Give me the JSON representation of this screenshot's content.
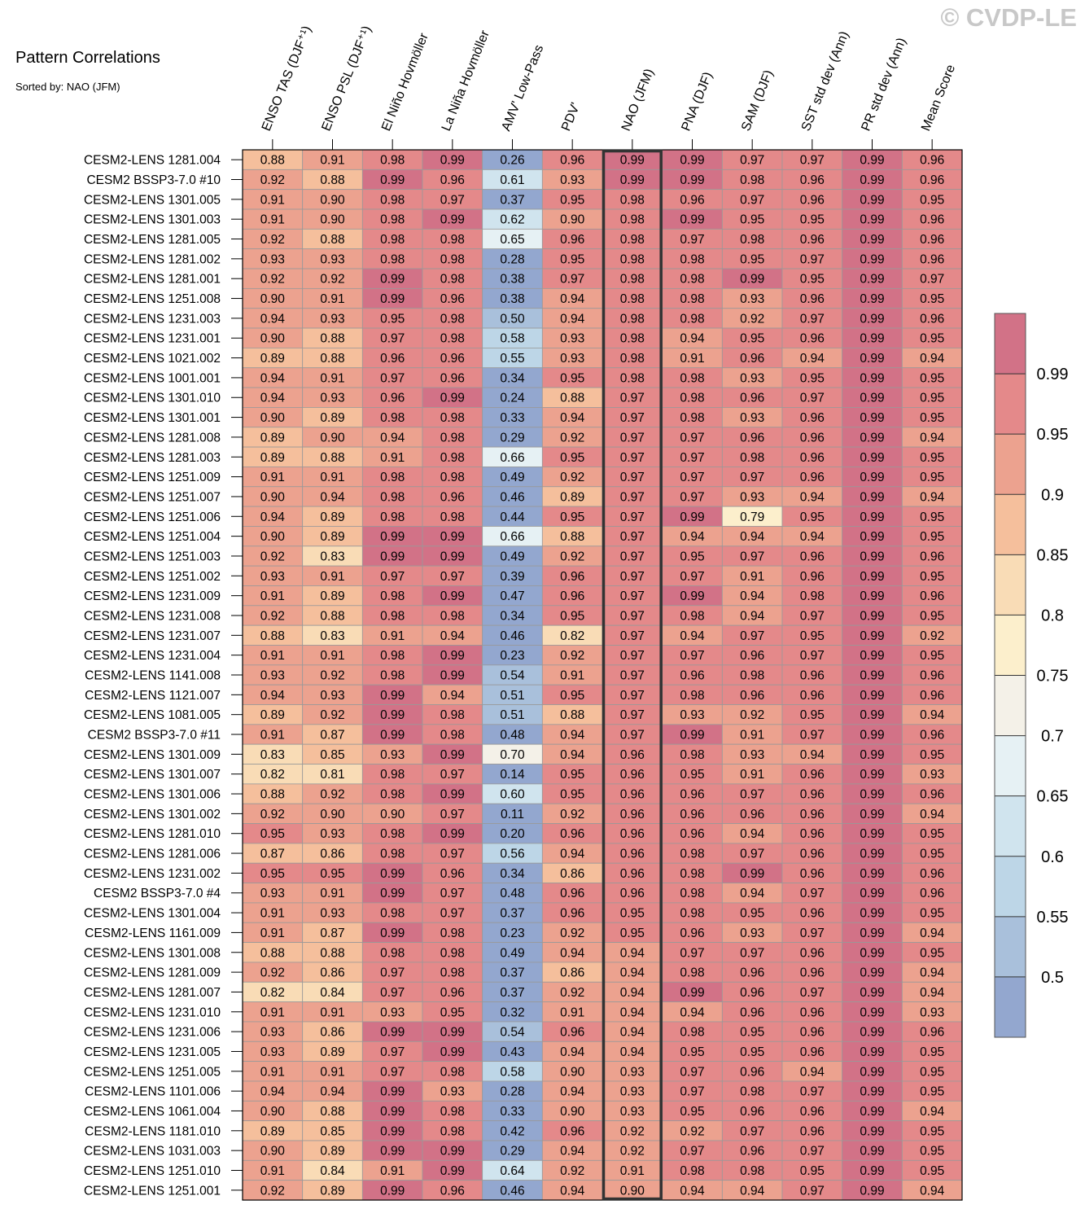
{
  "title": "Pattern Correlations",
  "subtitle": "Sorted by: NAO (JFM)",
  "watermark": "© CVDP-LE",
  "chart_data": {
    "type": "heatmap",
    "title": "Pattern Correlations",
    "subtitle": "Sorted by: NAO (JFM)",
    "highlighted_column": "NAO (JFM)",
    "columns": [
      "ENSO TAS (DJF⁺¹)",
      "ENSO PSL (DJF⁺¹)",
      "El Niño Hovmöller",
      "La Niña Hovmöller",
      "AMV' Low-Pass",
      "PDV'",
      "NAO (JFM)",
      "PNA (DJF)",
      "SAM (DJF)",
      "SST std dev (Ann)",
      "PR std dev (Ann)",
      "Mean Score"
    ],
    "rows": [
      {
        "name": "CESM2-LENS 1281.004",
        "values": [
          "0.88",
          "0.91",
          "0.98",
          "0.99",
          "0.26",
          "0.96",
          "0.99",
          "0.99",
          "0.97",
          "0.97",
          "0.99",
          "0.96"
        ]
      },
      {
        "name": "CESM2 BSSP3-7.0 #10",
        "values": [
          "0.92",
          "0.88",
          "0.99",
          "0.96",
          "0.61",
          "0.93",
          "0.99",
          "0.99",
          "0.98",
          "0.96",
          "0.99",
          "0.96"
        ]
      },
      {
        "name": "CESM2-LENS 1301.005",
        "values": [
          "0.91",
          "0.90",
          "0.98",
          "0.97",
          "0.37",
          "0.95",
          "0.98",
          "0.96",
          "0.97",
          "0.96",
          "0.99",
          "0.95"
        ]
      },
      {
        "name": "CESM2-LENS 1301.003",
        "values": [
          "0.91",
          "0.90",
          "0.98",
          "0.99",
          "0.62",
          "0.90",
          "0.98",
          "0.99",
          "0.95",
          "0.95",
          "0.99",
          "0.96"
        ]
      },
      {
        "name": "CESM2-LENS 1281.005",
        "values": [
          "0.92",
          "0.88",
          "0.98",
          "0.98",
          "0.65",
          "0.96",
          "0.98",
          "0.97",
          "0.98",
          "0.96",
          "0.99",
          "0.96"
        ]
      },
      {
        "name": "CESM2-LENS 1281.002",
        "values": [
          "0.93",
          "0.93",
          "0.98",
          "0.98",
          "0.28",
          "0.95",
          "0.98",
          "0.98",
          "0.95",
          "0.97",
          "0.99",
          "0.96"
        ]
      },
      {
        "name": "CESM2-LENS 1281.001",
        "values": [
          "0.92",
          "0.92",
          "0.99",
          "0.98",
          "0.38",
          "0.97",
          "0.98",
          "0.98",
          "0.99",
          "0.95",
          "0.99",
          "0.97"
        ]
      },
      {
        "name": "CESM2-LENS 1251.008",
        "values": [
          "0.90",
          "0.91",
          "0.99",
          "0.96",
          "0.38",
          "0.94",
          "0.98",
          "0.98",
          "0.93",
          "0.96",
          "0.99",
          "0.95"
        ]
      },
      {
        "name": "CESM2-LENS 1231.003",
        "values": [
          "0.94",
          "0.93",
          "0.95",
          "0.98",
          "0.50",
          "0.94",
          "0.98",
          "0.98",
          "0.92",
          "0.97",
          "0.99",
          "0.96"
        ]
      },
      {
        "name": "CESM2-LENS 1231.001",
        "values": [
          "0.90",
          "0.88",
          "0.97",
          "0.98",
          "0.58",
          "0.93",
          "0.98",
          "0.94",
          "0.95",
          "0.96",
          "0.99",
          "0.95"
        ]
      },
      {
        "name": "CESM2-LENS 1021.002",
        "values": [
          "0.89",
          "0.88",
          "0.96",
          "0.96",
          "0.55",
          "0.93",
          "0.98",
          "0.91",
          "0.96",
          "0.94",
          "0.99",
          "0.94"
        ]
      },
      {
        "name": "CESM2-LENS 1001.001",
        "values": [
          "0.94",
          "0.91",
          "0.97",
          "0.96",
          "0.34",
          "0.95",
          "0.98",
          "0.98",
          "0.93",
          "0.95",
          "0.99",
          "0.95"
        ]
      },
      {
        "name": "CESM2-LENS 1301.010",
        "values": [
          "0.94",
          "0.93",
          "0.96",
          "0.99",
          "0.24",
          "0.88",
          "0.97",
          "0.98",
          "0.96",
          "0.97",
          "0.99",
          "0.95"
        ]
      },
      {
        "name": "CESM2-LENS 1301.001",
        "values": [
          "0.90",
          "0.89",
          "0.98",
          "0.98",
          "0.33",
          "0.94",
          "0.97",
          "0.98",
          "0.93",
          "0.96",
          "0.99",
          "0.95"
        ]
      },
      {
        "name": "CESM2-LENS 1281.008",
        "values": [
          "0.89",
          "0.90",
          "0.94",
          "0.98",
          "0.29",
          "0.92",
          "0.97",
          "0.97",
          "0.96",
          "0.96",
          "0.99",
          "0.94"
        ]
      },
      {
        "name": "CESM2-LENS 1281.003",
        "values": [
          "0.89",
          "0.88",
          "0.91",
          "0.98",
          "0.66",
          "0.95",
          "0.97",
          "0.97",
          "0.98",
          "0.96",
          "0.99",
          "0.95"
        ]
      },
      {
        "name": "CESM2-LENS 1251.009",
        "values": [
          "0.91",
          "0.91",
          "0.98",
          "0.98",
          "0.49",
          "0.92",
          "0.97",
          "0.97",
          "0.97",
          "0.96",
          "0.99",
          "0.95"
        ]
      },
      {
        "name": "CESM2-LENS 1251.007",
        "values": [
          "0.90",
          "0.94",
          "0.98",
          "0.96",
          "0.46",
          "0.89",
          "0.97",
          "0.97",
          "0.93",
          "0.94",
          "0.99",
          "0.94"
        ]
      },
      {
        "name": "CESM2-LENS 1251.006",
        "values": [
          "0.94",
          "0.89",
          "0.98",
          "0.98",
          "0.44",
          "0.95",
          "0.97",
          "0.99",
          "0.79",
          "0.95",
          "0.99",
          "0.95"
        ]
      },
      {
        "name": "CESM2-LENS 1251.004",
        "values": [
          "0.90",
          "0.89",
          "0.99",
          "0.99",
          "0.66",
          "0.88",
          "0.97",
          "0.94",
          "0.94",
          "0.94",
          "0.99",
          "0.95"
        ]
      },
      {
        "name": "CESM2-LENS 1251.003",
        "values": [
          "0.92",
          "0.83",
          "0.99",
          "0.99",
          "0.49",
          "0.92",
          "0.97",
          "0.95",
          "0.97",
          "0.96",
          "0.99",
          "0.96"
        ]
      },
      {
        "name": "CESM2-LENS 1251.002",
        "values": [
          "0.93",
          "0.91",
          "0.97",
          "0.97",
          "0.39",
          "0.96",
          "0.97",
          "0.97",
          "0.91",
          "0.96",
          "0.99",
          "0.95"
        ]
      },
      {
        "name": "CESM2-LENS 1231.009",
        "values": [
          "0.91",
          "0.89",
          "0.98",
          "0.99",
          "0.47",
          "0.96",
          "0.97",
          "0.99",
          "0.94",
          "0.98",
          "0.99",
          "0.96"
        ]
      },
      {
        "name": "CESM2-LENS 1231.008",
        "values": [
          "0.92",
          "0.88",
          "0.98",
          "0.98",
          "0.34",
          "0.95",
          "0.97",
          "0.98",
          "0.94",
          "0.97",
          "0.99",
          "0.95"
        ]
      },
      {
        "name": "CESM2-LENS 1231.007",
        "values": [
          "0.88",
          "0.83",
          "0.91",
          "0.94",
          "0.46",
          "0.82",
          "0.97",
          "0.94",
          "0.97",
          "0.95",
          "0.99",
          "0.92"
        ]
      },
      {
        "name": "CESM2-LENS 1231.004",
        "values": [
          "0.91",
          "0.91",
          "0.98",
          "0.99",
          "0.23",
          "0.92",
          "0.97",
          "0.97",
          "0.96",
          "0.97",
          "0.99",
          "0.95"
        ]
      },
      {
        "name": "CESM2-LENS 1141.008",
        "values": [
          "0.93",
          "0.92",
          "0.98",
          "0.99",
          "0.54",
          "0.91",
          "0.97",
          "0.96",
          "0.98",
          "0.96",
          "0.99",
          "0.96"
        ]
      },
      {
        "name": "CESM2-LENS 1121.007",
        "values": [
          "0.94",
          "0.93",
          "0.99",
          "0.94",
          "0.51",
          "0.95",
          "0.97",
          "0.98",
          "0.96",
          "0.96",
          "0.99",
          "0.96"
        ]
      },
      {
        "name": "CESM2-LENS 1081.005",
        "values": [
          "0.89",
          "0.92",
          "0.99",
          "0.98",
          "0.51",
          "0.88",
          "0.97",
          "0.93",
          "0.92",
          "0.95",
          "0.99",
          "0.94"
        ]
      },
      {
        "name": "CESM2 BSSP3-7.0 #11",
        "values": [
          "0.91",
          "0.87",
          "0.99",
          "0.98",
          "0.48",
          "0.94",
          "0.97",
          "0.99",
          "0.91",
          "0.97",
          "0.99",
          "0.96"
        ]
      },
      {
        "name": "CESM2-LENS 1301.009",
        "values": [
          "0.83",
          "0.85",
          "0.93",
          "0.99",
          "0.70",
          "0.94",
          "0.96",
          "0.98",
          "0.93",
          "0.94",
          "0.99",
          "0.95"
        ]
      },
      {
        "name": "CESM2-LENS 1301.007",
        "values": [
          "0.82",
          "0.81",
          "0.98",
          "0.97",
          "0.14",
          "0.95",
          "0.96",
          "0.95",
          "0.91",
          "0.96",
          "0.99",
          "0.93"
        ]
      },
      {
        "name": "CESM2-LENS 1301.006",
        "values": [
          "0.88",
          "0.92",
          "0.98",
          "0.99",
          "0.60",
          "0.95",
          "0.96",
          "0.96",
          "0.97",
          "0.96",
          "0.99",
          "0.96"
        ]
      },
      {
        "name": "CESM2-LENS 1301.002",
        "values": [
          "0.92",
          "0.90",
          "0.90",
          "0.97",
          "0.11",
          "0.92",
          "0.96",
          "0.96",
          "0.96",
          "0.96",
          "0.99",
          "0.94"
        ]
      },
      {
        "name": "CESM2-LENS 1281.010",
        "values": [
          "0.95",
          "0.93",
          "0.98",
          "0.99",
          "0.20",
          "0.96",
          "0.96",
          "0.96",
          "0.94",
          "0.96",
          "0.99",
          "0.95"
        ]
      },
      {
        "name": "CESM2-LENS 1281.006",
        "values": [
          "0.87",
          "0.86",
          "0.98",
          "0.97",
          "0.56",
          "0.94",
          "0.96",
          "0.98",
          "0.97",
          "0.96",
          "0.99",
          "0.95"
        ]
      },
      {
        "name": "CESM2-LENS 1231.002",
        "values": [
          "0.95",
          "0.95",
          "0.99",
          "0.96",
          "0.34",
          "0.86",
          "0.96",
          "0.98",
          "0.99",
          "0.96",
          "0.99",
          "0.96"
        ]
      },
      {
        "name": "CESM2 BSSP3-7.0 #4",
        "values": [
          "0.93",
          "0.91",
          "0.99",
          "0.97",
          "0.48",
          "0.96",
          "0.96",
          "0.98",
          "0.94",
          "0.97",
          "0.99",
          "0.96"
        ]
      },
      {
        "name": "CESM2-LENS 1301.004",
        "values": [
          "0.91",
          "0.93",
          "0.98",
          "0.97",
          "0.37",
          "0.96",
          "0.95",
          "0.98",
          "0.95",
          "0.96",
          "0.99",
          "0.95"
        ]
      },
      {
        "name": "CESM2-LENS 1161.009",
        "values": [
          "0.91",
          "0.87",
          "0.99",
          "0.98",
          "0.23",
          "0.92",
          "0.95",
          "0.96",
          "0.93",
          "0.97",
          "0.99",
          "0.94"
        ]
      },
      {
        "name": "CESM2-LENS 1301.008",
        "values": [
          "0.88",
          "0.88",
          "0.98",
          "0.98",
          "0.49",
          "0.94",
          "0.94",
          "0.97",
          "0.97",
          "0.96",
          "0.99",
          "0.95"
        ]
      },
      {
        "name": "CESM2-LENS 1281.009",
        "values": [
          "0.92",
          "0.86",
          "0.97",
          "0.98",
          "0.37",
          "0.86",
          "0.94",
          "0.98",
          "0.96",
          "0.96",
          "0.99",
          "0.94"
        ]
      },
      {
        "name": "CESM2-LENS 1281.007",
        "values": [
          "0.82",
          "0.84",
          "0.97",
          "0.96",
          "0.37",
          "0.92",
          "0.94",
          "0.99",
          "0.96",
          "0.97",
          "0.99",
          "0.94"
        ]
      },
      {
        "name": "CESM2-LENS 1231.010",
        "values": [
          "0.91",
          "0.91",
          "0.93",
          "0.95",
          "0.32",
          "0.91",
          "0.94",
          "0.94",
          "0.96",
          "0.96",
          "0.99",
          "0.93"
        ]
      },
      {
        "name": "CESM2-LENS 1231.006",
        "values": [
          "0.93",
          "0.86",
          "0.99",
          "0.99",
          "0.54",
          "0.96",
          "0.94",
          "0.98",
          "0.95",
          "0.96",
          "0.99",
          "0.96"
        ]
      },
      {
        "name": "CESM2-LENS 1231.005",
        "values": [
          "0.93",
          "0.89",
          "0.97",
          "0.99",
          "0.43",
          "0.94",
          "0.94",
          "0.95",
          "0.95",
          "0.96",
          "0.99",
          "0.95"
        ]
      },
      {
        "name": "CESM2-LENS 1251.005",
        "values": [
          "0.91",
          "0.91",
          "0.97",
          "0.98",
          "0.58",
          "0.90",
          "0.93",
          "0.97",
          "0.96",
          "0.94",
          "0.99",
          "0.95"
        ]
      },
      {
        "name": "CESM2-LENS 1101.006",
        "values": [
          "0.94",
          "0.94",
          "0.99",
          "0.93",
          "0.28",
          "0.94",
          "0.93",
          "0.97",
          "0.98",
          "0.97",
          "0.99",
          "0.95"
        ]
      },
      {
        "name": "CESM2-LENS 1061.004",
        "values": [
          "0.90",
          "0.88",
          "0.99",
          "0.98",
          "0.33",
          "0.90",
          "0.93",
          "0.95",
          "0.96",
          "0.96",
          "0.99",
          "0.94"
        ]
      },
      {
        "name": "CESM2-LENS 1181.010",
        "values": [
          "0.89",
          "0.85",
          "0.99",
          "0.98",
          "0.42",
          "0.96",
          "0.92",
          "0.92",
          "0.97",
          "0.96",
          "0.99",
          "0.95"
        ]
      },
      {
        "name": "CESM2-LENS 1031.003",
        "values": [
          "0.90",
          "0.89",
          "0.99",
          "0.99",
          "0.29",
          "0.94",
          "0.92",
          "0.97",
          "0.96",
          "0.97",
          "0.99",
          "0.95"
        ]
      },
      {
        "name": "CESM2-LENS 1251.010",
        "values": [
          "0.91",
          "0.84",
          "0.91",
          "0.99",
          "0.64",
          "0.92",
          "0.91",
          "0.98",
          "0.98",
          "0.95",
          "0.99",
          "0.95"
        ]
      },
      {
        "name": "CESM2-LENS 1251.001",
        "values": [
          "0.92",
          "0.89",
          "0.99",
          "0.96",
          "0.46",
          "0.94",
          "0.90",
          "0.94",
          "0.94",
          "0.97",
          "0.99",
          "0.94"
        ]
      }
    ],
    "colorbar": {
      "tick_labels": [
        "0.99",
        "0.95",
        "0.9",
        "0.85",
        "0.8",
        "0.75",
        "0.7",
        "0.65",
        "0.6",
        "0.55",
        "0.5"
      ],
      "levels": [
        0.5,
        0.55,
        0.6,
        0.65,
        0.7,
        0.75,
        0.8,
        0.85,
        0.9,
        0.95,
        0.99
      ],
      "colors": [
        "#93a7cf",
        "#a9c0db",
        "#bdd6e7",
        "#d0e4ee",
        "#e6f1f4",
        "#f4f1e8",
        "#fcefcc",
        "#f9dcb6",
        "#f5bf9c",
        "#eca28f",
        "#e4898a",
        "#d27287"
      ]
    },
    "colors": {
      "grid_line": "#999999",
      "highlight_box": "#333333"
    }
  }
}
